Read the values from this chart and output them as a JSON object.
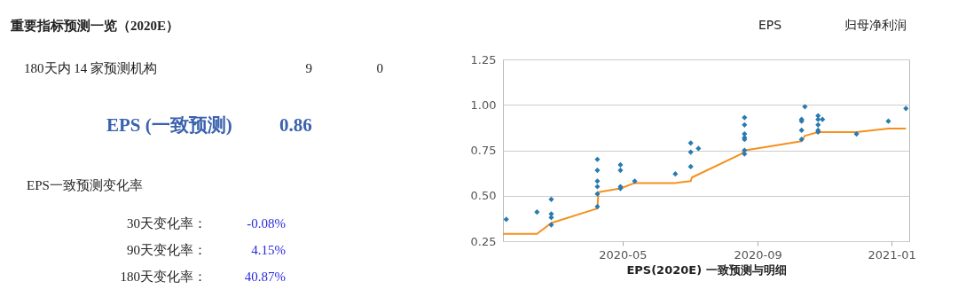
{
  "chart_data": {
    "type": "scatter",
    "title": "重要指标预测一览（2020E）",
    "xlabel": "EPS(2020E) 一致预测与明细",
    "annotations": [
      "EPS",
      "归母净利润",
      "180天内 14 家预测机构",
      "9",
      "0",
      "EPS (一致预测)",
      "0.86",
      "EPS一致预测变化率",
      "30天变化率：",
      "-0.08%",
      "90天变化率：",
      "4.15%",
      "180天变化率：",
      "40.87%"
    ],
    "xlim": [
      "2020-01-13",
      "2021-01-17"
    ],
    "xticks": [
      "2020-05",
      "2020-09",
      "2021-01"
    ],
    "ylim": [
      0.25,
      1.25
    ],
    "yticks": [
      {
        "value": 0.25,
        "label": "0.25"
      },
      {
        "value": 0.5,
        "label": "0.50"
      },
      {
        "value": 0.75,
        "label": "0.75"
      },
      {
        "value": 1.0,
        "label": "1.00"
      },
      {
        "value": 1.25,
        "label": "1.25"
      }
    ],
    "grid": "y",
    "series": [
      {
        "type": "line",
        "color": "#f5901e",
        "x": [
          "2020-01-13",
          "2020-02-13",
          "2020-02-26",
          "2020-04-08",
          "2020-04-09",
          "2020-04-29",
          "2020-05-12",
          "2020-06-18",
          "2020-07-02",
          "2020-07-03",
          "2020-08-17",
          "2020-08-21",
          "2020-10-11",
          "2020-10-14",
          "2020-10-26",
          "2020-11-30",
          "2020-12-29",
          "2021-01-14"
        ],
        "values": [
          0.29,
          0.29,
          0.35,
          0.43,
          0.52,
          0.54,
          0.57,
          0.57,
          0.58,
          0.6,
          0.73,
          0.75,
          0.8,
          0.83,
          0.85,
          0.85,
          0.87,
          0.87
        ]
      },
      {
        "type": "scatter",
        "color": "#2a7ab0",
        "marker": "diamond",
        "x": [
          "2020-01-16",
          "2020-02-13",
          "2020-02-26",
          "2020-02-26",
          "2020-02-26",
          "2020-02-26",
          "2020-04-08",
          "2020-04-08",
          "2020-04-08",
          "2020-04-08",
          "2020-04-08",
          "2020-04-08",
          "2020-04-29",
          "2020-04-29",
          "2020-04-29",
          "2020-04-29",
          "2020-05-12",
          "2020-06-18",
          "2020-07-02",
          "2020-07-02",
          "2020-07-02",
          "2020-07-09",
          "2020-08-20",
          "2020-08-20",
          "2020-08-20",
          "2020-08-20",
          "2020-08-20",
          "2020-08-20",
          "2020-08-20",
          "2020-10-11",
          "2020-10-11",
          "2020-10-11",
          "2020-10-11",
          "2020-10-14",
          "2020-10-26",
          "2020-10-26",
          "2020-10-26",
          "2020-10-26",
          "2020-10-26",
          "2020-10-30",
          "2020-11-30",
          "2020-12-29",
          "2021-01-14"
        ],
        "values": [
          0.37,
          0.41,
          0.48,
          0.4,
          0.38,
          0.34,
          0.7,
          0.64,
          0.58,
          0.55,
          0.51,
          0.44,
          0.67,
          0.64,
          0.55,
          0.54,
          0.58,
          0.62,
          0.79,
          0.74,
          0.66,
          0.76,
          0.93,
          0.89,
          0.84,
          0.82,
          0.81,
          0.75,
          0.73,
          0.92,
          0.91,
          0.86,
          0.81,
          0.99,
          0.94,
          0.92,
          0.89,
          0.86,
          0.85,
          0.92,
          0.84,
          0.91,
          0.98
        ]
      }
    ]
  }
}
